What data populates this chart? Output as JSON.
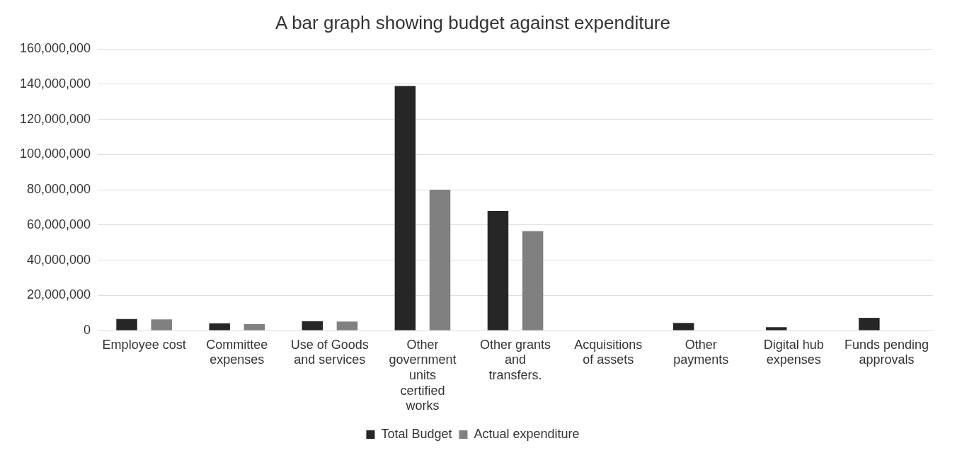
{
  "chart_data": {
    "type": "bar",
    "title": "A bar graph showing budget against expenditure",
    "categories": [
      "Employee cost",
      "Committee expenses",
      "Use of Goods and services",
      "Other government units certified works",
      "Other grants and transfers.",
      "Acquisitions of assets",
      "Other payments",
      "Digital hub expenses",
      "Funds pending approvals"
    ],
    "series": [
      {
        "name": "Total Budget",
        "color": "#262626",
        "values": [
          6500000,
          4100000,
          5300000,
          139000000,
          68000000,
          0,
          4300000,
          1900000,
          7200000
        ]
      },
      {
        "name": "Actual expenditure",
        "color": "#808080",
        "values": [
          6300000,
          3700000,
          5100000,
          80000000,
          56500000,
          0,
          0,
          0,
          0
        ]
      }
    ],
    "ylim": [
      0,
      160000000
    ],
    "yticks": [
      0,
      {
        "value": 20000000,
        "label": "20,000,000"
      },
      {
        "value": 40000000,
        "label": "40,000,000"
      },
      {
        "value": 60000000,
        "label": "60,000,000"
      },
      {
        "value": 80000000,
        "label": "80,000,000"
      },
      {
        "value": 100000000,
        "label": "100,000,000"
      },
      {
        "value": 120000000,
        "label": "120,000,000"
      },
      {
        "value": 140000000,
        "label": "140,000,000"
      },
      {
        "value": 160000000,
        "label": "160,000,000"
      }
    ],
    "grid": "y",
    "legend": "bottom"
  }
}
